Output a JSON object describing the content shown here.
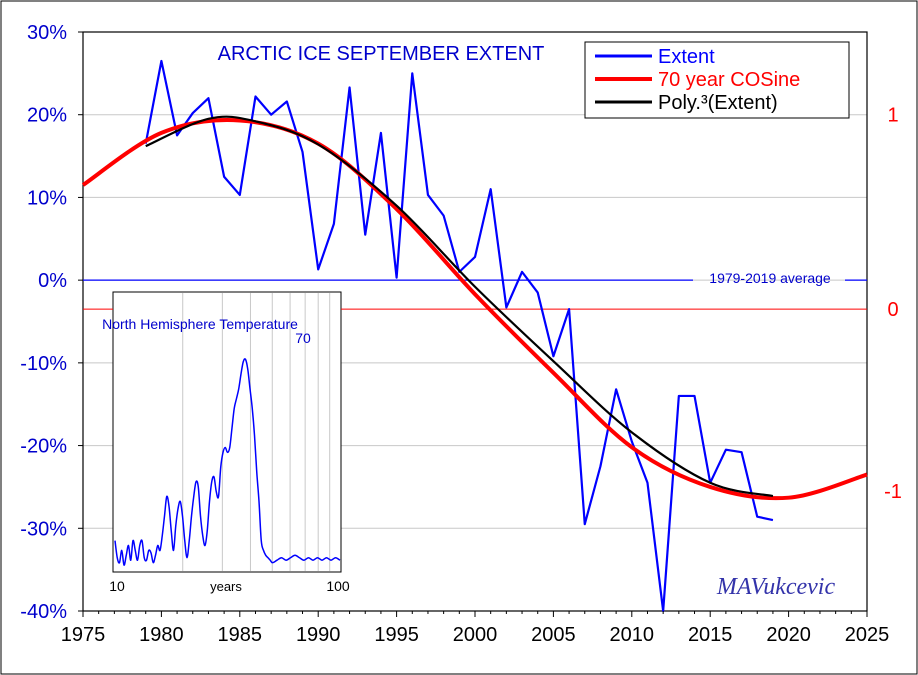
{
  "chart_data": {
    "type": "line",
    "title": "ARCTIC  ICE SEPTEMBER EXTENT",
    "xlim": [
      1975,
      2025
    ],
    "x_ticks": [
      "1975",
      "1980",
      "1985",
      "1990",
      "1995",
      "2000",
      "2005",
      "2010",
      "2015",
      "2020",
      "2025"
    ],
    "ylim": [
      -40,
      30
    ],
    "y_ticks_left": [
      "30%",
      "20%",
      "10%",
      "0%",
      "-10%",
      "-20%",
      "-30%",
      "-40%"
    ],
    "y_ticks_right": [
      "1",
      "0",
      "-1"
    ],
    "right_axis_values": [
      1,
      0,
      -1
    ],
    "right_axis_left_equiv": [
      20,
      -3.5,
      -25.5
    ],
    "grid": true,
    "legend_position": "top-right",
    "legend": [
      "Extent",
      "70 year COSine",
      "Poly.³(Extent)"
    ],
    "reference_line_label": "1979-2019 average",
    "watermark": "MAVukcevic",
    "colors": {
      "extent": "#0000ff",
      "cosine": "#ff0000",
      "poly": "#000000",
      "text": "#0000cc",
      "right_axis": "#ff0000"
    },
    "series": [
      {
        "name": "Extent",
        "x": [
          1979,
          1980,
          1981,
          1982,
          1983,
          1984,
          1985,
          1986,
          1987,
          1988,
          1989,
          1990,
          1991,
          1992,
          1993,
          1994,
          1995,
          1996,
          1997,
          1998,
          1999,
          2000,
          2001,
          2002,
          2003,
          2004,
          2005,
          2006,
          2007,
          2008,
          2009,
          2010,
          2011,
          2012,
          2013,
          2014,
          2015,
          2016,
          2017,
          2018,
          2019
        ],
        "values": [
          16.5,
          26.5,
          17.5,
          20.2,
          22,
          12.5,
          10.3,
          22.2,
          20,
          21.6,
          15.5,
          1.3,
          6.8,
          23.3,
          5.5,
          17.8,
          0.3,
          25,
          10.3,
          7.8,
          1,
          2.8,
          11,
          -3.3,
          1,
          -1.5,
          -9.2,
          -3.5,
          -29.5,
          -22.5,
          -13.2,
          -19.5,
          -24.5,
          -40,
          -14,
          -14,
          -24.5,
          -20.5,
          -20.8,
          -28.6,
          -29
        ]
      },
      {
        "name": "70 year COSine",
        "x": [
          1975,
          1980,
          1985,
          1990,
          1995,
          2000,
          2005,
          2010,
          2015,
          2020,
          2025
        ],
        "values": [
          11.5,
          17.8,
          19.3,
          16.5,
          8.6,
          -1.7,
          -11.2,
          -20.2,
          -25,
          -26.3,
          -23.5
        ]
      },
      {
        "name": "Poly.³(Extent)",
        "x": [
          1979,
          1983,
          1986,
          1990,
          1995,
          2000,
          2005,
          2010,
          2015,
          2019
        ],
        "values": [
          16.2,
          19.5,
          19.2,
          16.4,
          9,
          -0.8,
          -9.8,
          -18.4,
          -24.5,
          -26.1
        ]
      }
    ],
    "inset": {
      "title": "North Hemisphere Temperature",
      "peak_label": "70",
      "x_axis_label": "years",
      "x_tick_left": "10",
      "x_tick_right": "100",
      "series_x": [
        0.0,
        0.01,
        0.02,
        0.03,
        0.04,
        0.05,
        0.06,
        0.07,
        0.08,
        0.09,
        0.1,
        0.11,
        0.12,
        0.13,
        0.14,
        0.15,
        0.16,
        0.17,
        0.18,
        0.19,
        0.2,
        0.21,
        0.22,
        0.23,
        0.24,
        0.25,
        0.26,
        0.27,
        0.28,
        0.29,
        0.3,
        0.31,
        0.32,
        0.33,
        0.34,
        0.35,
        0.36,
        0.37,
        0.38,
        0.39,
        0.4,
        0.41,
        0.42,
        0.43,
        0.44,
        0.45,
        0.46,
        0.47,
        0.48,
        0.49,
        0.5,
        0.51,
        0.52,
        0.53,
        0.54,
        0.55,
        0.56,
        0.57,
        0.58,
        0.59,
        0.6,
        0.61,
        0.62,
        0.63,
        0.64,
        0.65,
        0.66,
        0.67,
        0.68,
        0.69,
        0.7,
        0.72,
        0.74,
        0.76,
        0.78,
        0.8,
        0.82,
        0.84,
        0.86,
        0.88,
        0.9,
        0.92,
        0.94,
        0.96,
        0.98,
        1.0
      ],
      "series_y": [
        0.12,
        0.05,
        0.03,
        0.08,
        0.02,
        0.06,
        0.1,
        0.04,
        0.12,
        0.08,
        0.04,
        0.1,
        0.12,
        0.05,
        0.04,
        0.08,
        0.07,
        0.03,
        0.06,
        0.1,
        0.08,
        0.14,
        0.22,
        0.3,
        0.26,
        0.16,
        0.08,
        0.18,
        0.25,
        0.28,
        0.22,
        0.12,
        0.05,
        0.12,
        0.22,
        0.3,
        0.36,
        0.34,
        0.22,
        0.14,
        0.1,
        0.16,
        0.28,
        0.36,
        0.38,
        0.32,
        0.3,
        0.42,
        0.48,
        0.5,
        0.48,
        0.5,
        0.58,
        0.66,
        0.7,
        0.74,
        0.8,
        0.85,
        0.86,
        0.82,
        0.74,
        0.66,
        0.55,
        0.4,
        0.28,
        0.12,
        0.08,
        0.06,
        0.05,
        0.04,
        0.03,
        0.04,
        0.05,
        0.04,
        0.05,
        0.06,
        0.05,
        0.04,
        0.05,
        0.04,
        0.05,
        0.04,
        0.05,
        0.04,
        0.05,
        0.04
      ]
    }
  }
}
